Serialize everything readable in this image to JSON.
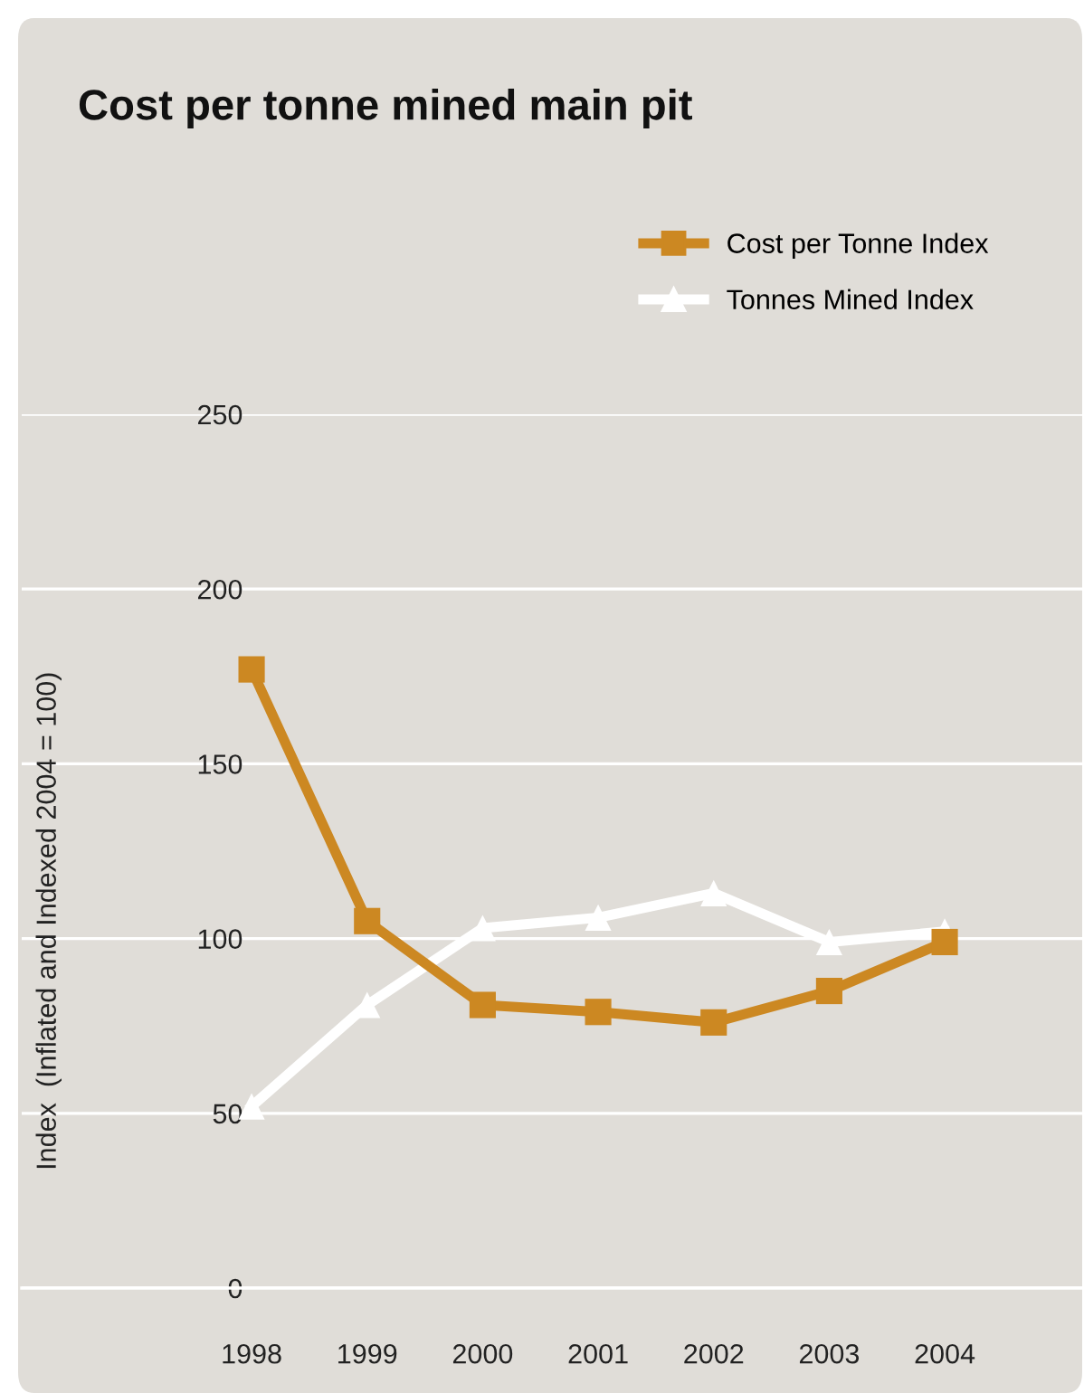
{
  "chart_data": {
    "type": "line",
    "title": "Cost per tonne mined main pit",
    "ylabel": "Index  (Inflated and Indexed 2004 = 100)",
    "categories": [
      "1998",
      "1999",
      "2000",
      "2001",
      "2002",
      "2003",
      "2004"
    ],
    "series": [
      {
        "name": "Cost per Tonne Index",
        "color": "#cc8822",
        "marker": "square",
        "values": [
          177,
          105,
          81,
          79,
          76,
          85,
          99
        ]
      },
      {
        "name": "Tonnes Mined Index",
        "color": "#ffffff",
        "marker": "triangle",
        "values": [
          52,
          81,
          103,
          106,
          113,
          99,
          102
        ]
      }
    ],
    "ylim": [
      0,
      250
    ],
    "yticks": [
      0,
      50,
      100,
      150,
      200,
      250
    ],
    "grid": "y",
    "legend": "top right",
    "line_style": "solid"
  }
}
